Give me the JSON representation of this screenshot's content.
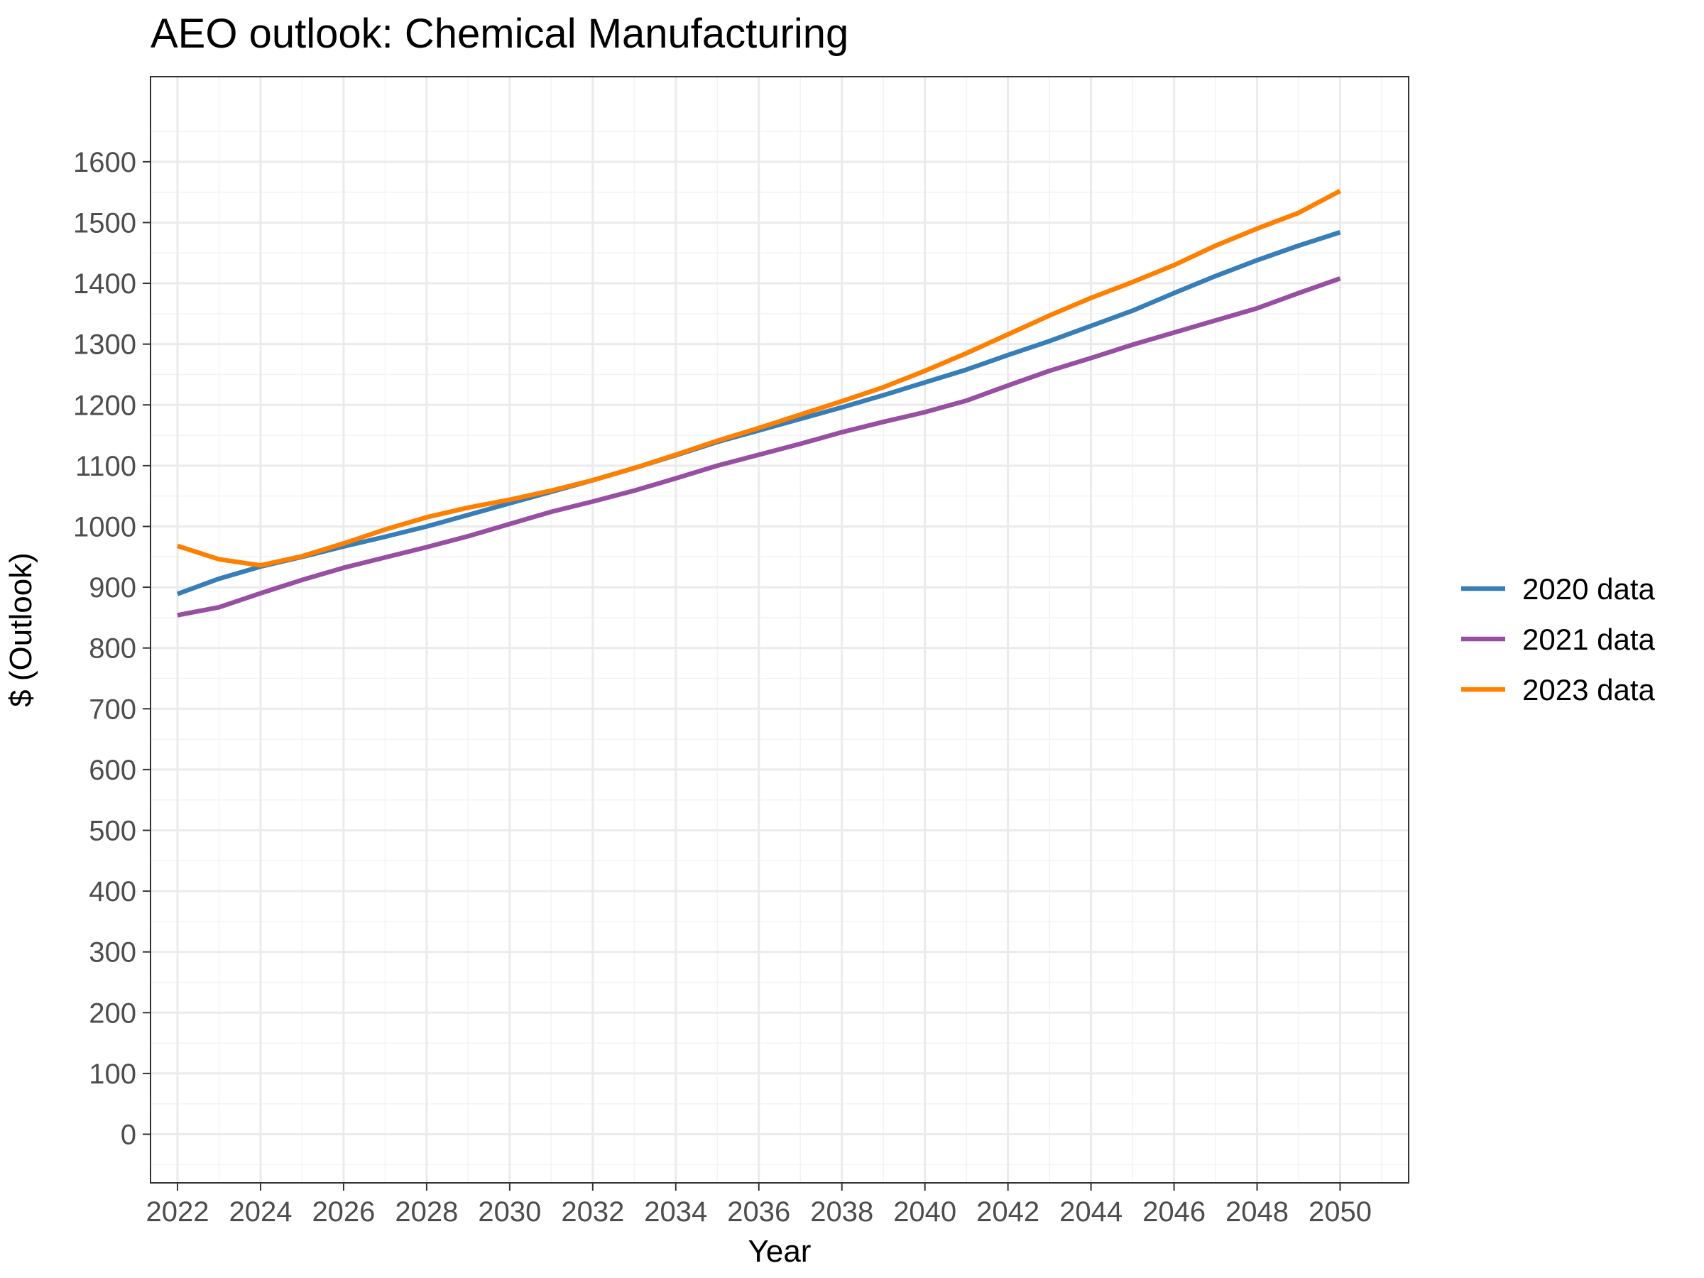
{
  "chart_data": {
    "type": "line",
    "title": "AEO outlook: Chemical Manufacturing",
    "xlabel": "Year",
    "ylabel": "$ (Outlook)",
    "xlim": [
      2021.35,
      2051.65
    ],
    "ylim": [
      -80,
      1740
    ],
    "x_ticks": [
      2022,
      2024,
      2026,
      2028,
      2030,
      2032,
      2034,
      2036,
      2038,
      2040,
      2042,
      2044,
      2046,
      2048,
      2050
    ],
    "y_ticks": [
      0,
      100,
      200,
      300,
      400,
      500,
      600,
      700,
      800,
      900,
      1000,
      1100,
      1200,
      1300,
      1400,
      1500,
      1600
    ],
    "grid": true,
    "legend_position": "right",
    "x": [
      2022,
      2023,
      2024,
      2025,
      2026,
      2027,
      2028,
      2029,
      2030,
      2031,
      2032,
      2033,
      2034,
      2035,
      2036,
      2037,
      2038,
      2039,
      2040,
      2041,
      2042,
      2043,
      2044,
      2045,
      2046,
      2047,
      2048,
      2049,
      2050
    ],
    "series": [
      {
        "name": "2020 data",
        "color": "#377eb8",
        "values": [
          889,
          914,
          934,
          950,
          967,
          983,
          1000,
          1019,
          1038,
          1057,
          1076,
          1096,
          1117,
          1139,
          1158,
          1177,
          1196,
          1216,
          1237,
          1258,
          1282,
          1305,
          1330,
          1355,
          1384,
          1412,
          1438,
          1462,
          1484
        ]
      },
      {
        "name": "2021 data",
        "color": "#984ea3",
        "values": [
          854,
          867,
          890,
          912,
          932,
          949,
          966,
          984,
          1004,
          1024,
          1041,
          1059,
          1079,
          1100,
          1118,
          1136,
          1155,
          1172,
          1188,
          1207,
          1232,
          1256,
          1277,
          1299,
          1319,
          1339,
          1359,
          1384,
          1408
        ]
      },
      {
        "name": "2023 data",
        "color": "#ff7f00",
        "values": [
          968,
          946,
          936,
          951,
          972,
          995,
          1015,
          1031,
          1044,
          1059,
          1076,
          1096,
          1118,
          1141,
          1162,
          1184,
          1206,
          1229,
          1256,
          1285,
          1316,
          1347,
          1376,
          1402,
          1430,
          1462,
          1490,
          1516,
          1552
        ]
      }
    ]
  }
}
